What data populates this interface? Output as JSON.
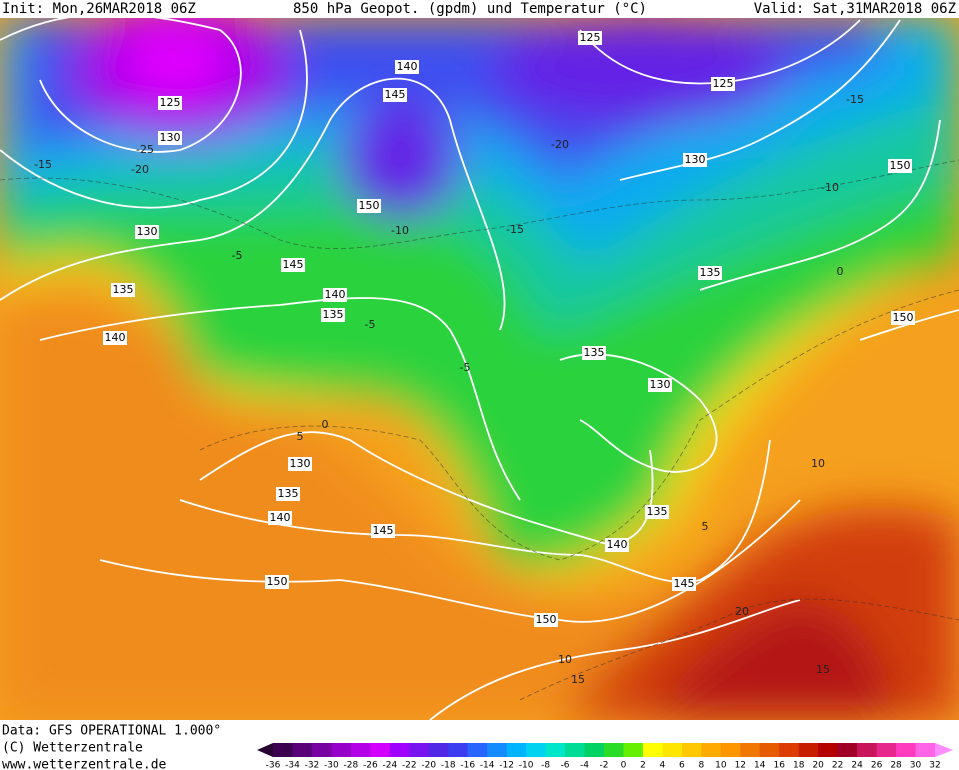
{
  "header": {
    "init": "Init: Mon,26MAR2018 06Z",
    "title": "850 hPa Geopot. (gpdm) und Temperatur (°C)",
    "valid": "Valid: Sat,31MAR2018 06Z"
  },
  "map": {
    "geopotential_labels": [
      "125",
      "125",
      "130",
      "140",
      "145",
      "125",
      "130",
      "150",
      "150",
      "130",
      "145",
      "135",
      "135",
      "140",
      "140",
      "135",
      "150",
      "135",
      "130",
      "130",
      "135",
      "140",
      "145",
      "135",
      "140",
      "150",
      "145",
      "150"
    ],
    "temperature_labels": [
      "-25",
      "-20",
      "-15",
      "-5",
      "-10",
      "-15",
      "-20",
      "-15",
      "-10",
      "0",
      "-5",
      "-5",
      "0",
      "5",
      "5",
      "10",
      "20",
      "10",
      "15",
      "15"
    ]
  },
  "footer": {
    "data": "Data: GFS OPERATIONAL 1.000°",
    "copyright": "(C) Wetterzentrale",
    "url": "www.wetterzentrale.de"
  },
  "legend": {
    "labels": [
      -36,
      -34,
      -32,
      -30,
      -28,
      -26,
      -24,
      -22,
      -20,
      -18,
      -16,
      -14,
      -12,
      -10,
      -8,
      -6,
      -4,
      -2,
      0,
      2,
      4,
      6,
      8,
      10,
      12,
      14,
      16,
      18,
      20,
      22,
      24,
      26,
      28,
      30,
      32
    ],
    "colors": [
      "#3c0050",
      "#5a0078",
      "#7800a0",
      "#9600c8",
      "#b400e6",
      "#d200ff",
      "#a000ff",
      "#7814f0",
      "#5028e6",
      "#3c3cf0",
      "#2864ff",
      "#148cff",
      "#00b4ff",
      "#00d2f0",
      "#00e6c8",
      "#00dc96",
      "#00d264",
      "#28dc28",
      "#64f000",
      "#ffff00",
      "#ffe600",
      "#ffc800",
      "#ffaa00",
      "#ff9600",
      "#f07800",
      "#e65a00",
      "#dc3c00",
      "#c81e00",
      "#b40000",
      "#a00028",
      "#c8145a",
      "#e6288c",
      "#ff3cbe",
      "#ff64e6"
    ],
    "low_color": "#280032",
    "high_color": "#ff8cff"
  }
}
